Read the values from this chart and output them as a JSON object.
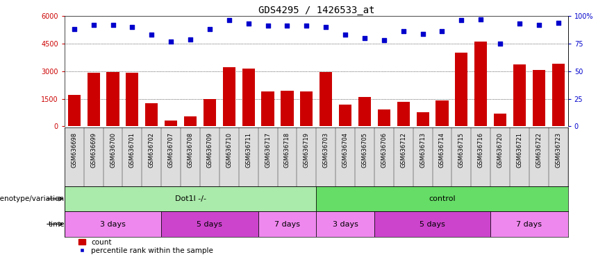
{
  "title": "GDS4295 / 1426533_at",
  "samples": [
    "GSM636698",
    "GSM636699",
    "GSM636700",
    "GSM636701",
    "GSM636702",
    "GSM636707",
    "GSM636708",
    "GSM636709",
    "GSM636710",
    "GSM636711",
    "GSM636717",
    "GSM636718",
    "GSM636719",
    "GSM636703",
    "GSM636704",
    "GSM636705",
    "GSM636706",
    "GSM636712",
    "GSM636713",
    "GSM636714",
    "GSM636715",
    "GSM636716",
    "GSM636720",
    "GSM636721",
    "GSM636722",
    "GSM636723"
  ],
  "counts": [
    1700,
    2900,
    2950,
    2900,
    1250,
    300,
    550,
    1500,
    3200,
    3150,
    1900,
    1950,
    1900,
    2950,
    1200,
    1600,
    900,
    1350,
    750,
    1400,
    4000,
    4600,
    700,
    3350,
    3050,
    3400
  ],
  "percentile_ranks": [
    88,
    92,
    92,
    90,
    83,
    77,
    79,
    88,
    96,
    93,
    91,
    91,
    91,
    90,
    83,
    80,
    78,
    86,
    84,
    86,
    96,
    97,
    75,
    93,
    92,
    94
  ],
  "bar_color": "#cc0000",
  "dot_color": "#0000cc",
  "ylim_left": [
    0,
    6000
  ],
  "ylim_right": [
    0,
    100
  ],
  "yticks_left": [
    0,
    1500,
    3000,
    4500,
    6000
  ],
  "ytick_labels_left": [
    "0",
    "1500",
    "3000",
    "4500",
    "6000"
  ],
  "yticks_right": [
    0,
    25,
    50,
    75,
    100
  ],
  "ytick_labels_right": [
    "0",
    "25",
    "50",
    "75",
    "100%"
  ],
  "bg_color": "white",
  "xlabel_bg": "#dddddd",
  "genotype_groups": [
    {
      "label": "Dot1l -/-",
      "start": 0,
      "end": 13,
      "color": "#aaeaaa"
    },
    {
      "label": "control",
      "start": 13,
      "end": 26,
      "color": "#66dd66"
    }
  ],
  "time_groups": [
    {
      "label": "3 days",
      "start": 0,
      "end": 5,
      "color": "#ee88ee"
    },
    {
      "label": "5 days",
      "start": 5,
      "end": 10,
      "color": "#cc44cc"
    },
    {
      "label": "7 days",
      "start": 10,
      "end": 13,
      "color": "#ee88ee"
    },
    {
      "label": "3 days",
      "start": 13,
      "end": 16,
      "color": "#ee88ee"
    },
    {
      "label": "5 days",
      "start": 16,
      "end": 22,
      "color": "#cc44cc"
    },
    {
      "label": "7 days",
      "start": 22,
      "end": 26,
      "color": "#ee88ee"
    }
  ],
  "genotype_label": "genotype/variation",
  "time_label": "time",
  "legend_count_label": "count",
  "legend_percentile_label": "percentile rank within the sample",
  "title_fontsize": 10,
  "tick_fontsize": 7,
  "bar_width": 0.65
}
